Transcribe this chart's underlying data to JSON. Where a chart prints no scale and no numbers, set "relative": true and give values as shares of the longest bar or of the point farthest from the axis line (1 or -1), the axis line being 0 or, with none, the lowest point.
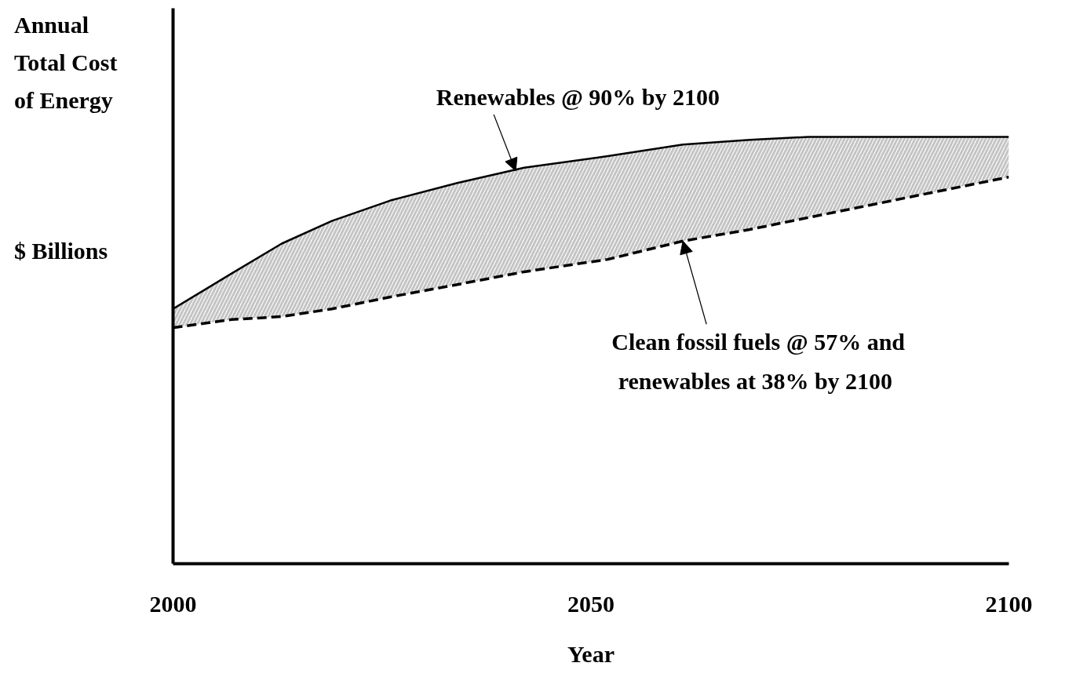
{
  "chart_data": {
    "type": "line",
    "title": "Annual\nTotal Cost\nof Energy",
    "ylabel": "$ Billions",
    "xlabel": "Year",
    "relative": true,
    "x": [
      2000,
      2007,
      2013,
      2019,
      2026,
      2034,
      2042,
      2052,
      2061,
      2069,
      2076,
      2100
    ],
    "xlim": [
      2000,
      2100
    ],
    "xticks": [
      2000,
      2050,
      2100
    ],
    "series": [
      {
        "color": "#000000",
        "line_style": "solid",
        "values": [
          0.597,
          0.68,
          0.75,
          0.803,
          0.851,
          0.892,
          0.928,
          0.955,
          0.982,
          0.993,
          1.0,
          1.0
        ],
        "lower": [
          0.553,
          0.572,
          0.579,
          0.597,
          0.625,
          0.654,
          0.684,
          0.713,
          0.756,
          0.783,
          0.811,
          0.906
        ],
        "upper": [
          0.597,
          0.68,
          0.75,
          0.803,
          0.851,
          0.892,
          0.928,
          0.955,
          0.982,
          0.993,
          1.0,
          1.0
        ]
      },
      {
        "color": "#000000",
        "line_style": "dashed",
        "values": [
          0.553,
          0.572,
          0.579,
          0.597,
          0.625,
          0.654,
          0.684,
          0.713,
          0.756,
          0.783,
          0.811,
          0.906
        ]
      }
    ],
    "annotations": [
      {
        "text": "Renewables  @ 90% by 2100",
        "x": 2041,
        "y": 0.92
      },
      {
        "text": "Clean fossil fuels @ 57% and\nrenewables  at 38% by 2100",
        "x": 2061,
        "y": 0.756
      }
    ]
  }
}
